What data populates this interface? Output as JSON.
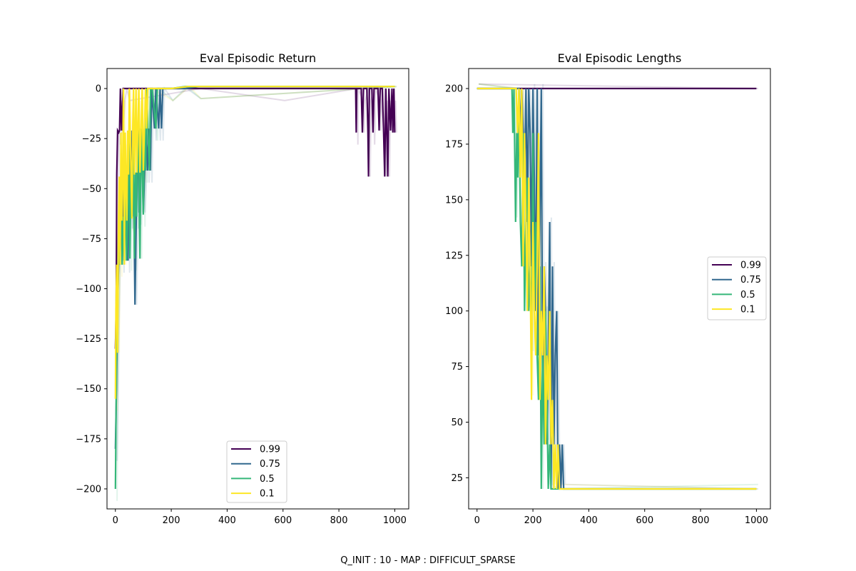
{
  "figure": {
    "caption": "Q_INIT : 10 - MAP : DIFFICULT_SPARSE"
  },
  "colors": {
    "0.99": "#440154",
    "0.75": "#31688e",
    "0.5": "#35b779",
    "0.1": "#fde725"
  },
  "chart_data": [
    {
      "type": "line",
      "title": "Eval Episodic Return",
      "xlabel": "",
      "ylabel": "",
      "xlim": [
        -30,
        1050
      ],
      "ylim": [
        -210,
        10
      ],
      "xticks": [
        0,
        200,
        400,
        600,
        800,
        1000
      ],
      "yticks": [
        0,
        -25,
        -50,
        -75,
        -100,
        -125,
        -150,
        -175,
        -200
      ],
      "legend": {
        "position": "lower-center",
        "entries": [
          "0.99",
          "0.75",
          "0.5",
          "0.1"
        ]
      },
      "grid": false,
      "series": [
        {
          "name": "0.99",
          "points": [
            [
              0,
              -130
            ],
            [
              3,
              -110
            ],
            [
              5,
              -43
            ],
            [
              8,
              -21
            ],
            [
              12,
              -22
            ],
            [
              15,
              -21
            ],
            [
              18,
              0
            ],
            [
              22,
              -21
            ],
            [
              28,
              0
            ],
            [
              35,
              0
            ],
            [
              45,
              0
            ],
            [
              300,
              0
            ],
            [
              600,
              0
            ],
            [
              860,
              0
            ],
            [
              862,
              -22
            ],
            [
              864,
              0
            ],
            [
              880,
              0
            ],
            [
              884,
              -22
            ],
            [
              888,
              0
            ],
            [
              900,
              0
            ],
            [
              904,
              -22
            ],
            [
              906,
              -44
            ],
            [
              909,
              0
            ],
            [
              918,
              0
            ],
            [
              922,
              -22
            ],
            [
              926,
              0
            ],
            [
              940,
              0
            ],
            [
              944,
              -21
            ],
            [
              948,
              0
            ],
            [
              955,
              0
            ],
            [
              960,
              -22
            ],
            [
              964,
              -44
            ],
            [
              968,
              0
            ],
            [
              975,
              -44
            ],
            [
              979,
              0
            ],
            [
              985,
              -21
            ],
            [
              990,
              0
            ],
            [
              993,
              -22
            ],
            [
              997,
              0
            ],
            [
              1000,
              -22
            ]
          ]
        },
        {
          "name": "0.75",
          "points": [
            [
              0,
              -180
            ],
            [
              4,
              -150
            ],
            [
              8,
              -108
            ],
            [
              12,
              -86
            ],
            [
              15,
              -65
            ],
            [
              20,
              -64
            ],
            [
              25,
              -86
            ],
            [
              30,
              -43
            ],
            [
              35,
              -64
            ],
            [
              40,
              -43
            ],
            [
              45,
              -86
            ],
            [
              50,
              -21
            ],
            [
              55,
              -64
            ],
            [
              60,
              -21
            ],
            [
              65,
              -43
            ],
            [
              70,
              -108
            ],
            [
              75,
              -63
            ],
            [
              80,
              -21
            ],
            [
              85,
              -62
            ],
            [
              90,
              -41
            ],
            [
              95,
              -20
            ],
            [
              100,
              -62
            ],
            [
              105,
              -41
            ],
            [
              110,
              -20
            ],
            [
              115,
              -41
            ],
            [
              120,
              -20
            ],
            [
              125,
              -41
            ],
            [
              130,
              0
            ],
            [
              140,
              -20
            ],
            [
              145,
              0
            ],
            [
              155,
              -20
            ],
            [
              160,
              0
            ],
            [
              165,
              -20
            ],
            [
              170,
              0
            ],
            [
              200,
              0
            ],
            [
              250,
              0
            ],
            [
              300,
              1
            ],
            [
              1000,
              1
            ]
          ]
        },
        {
          "name": "0.5",
          "points": [
            [
              0,
              -200
            ],
            [
              3,
              -155
            ],
            [
              6,
              -112
            ],
            [
              9,
              -90
            ],
            [
              12,
              -65
            ],
            [
              16,
              -88
            ],
            [
              20,
              -45
            ],
            [
              24,
              -88
            ],
            [
              28,
              -64
            ],
            [
              32,
              -86
            ],
            [
              36,
              -42
            ],
            [
              40,
              -86
            ],
            [
              44,
              -64
            ],
            [
              48,
              -21
            ],
            [
              52,
              -85
            ],
            [
              56,
              -42
            ],
            [
              60,
              -64
            ],
            [
              64,
              -20
            ],
            [
              68,
              -85
            ],
            [
              72,
              -42
            ],
            [
              76,
              -64
            ],
            [
              80,
              -20
            ],
            [
              84,
              -42
            ],
            [
              88,
              -85
            ],
            [
              92,
              -20
            ],
            [
              96,
              -41
            ],
            [
              100,
              -63
            ],
            [
              104,
              -20
            ],
            [
              108,
              -41
            ],
            [
              112,
              0
            ],
            [
              116,
              -20
            ],
            [
              122,
              -41
            ],
            [
              126,
              0
            ],
            [
              132,
              0
            ],
            [
              145,
              -20
            ],
            [
              150,
              0
            ],
            [
              200,
              0
            ],
            [
              250,
              1
            ],
            [
              300,
              1
            ],
            [
              1000,
              1
            ]
          ]
        },
        {
          "name": "0.1",
          "points": [
            [
              0,
              -155
            ],
            [
              2,
              -110
            ],
            [
              5,
              -88
            ],
            [
              8,
              -132
            ],
            [
              11,
              -66
            ],
            [
              14,
              -44
            ],
            [
              17,
              -88
            ],
            [
              20,
              -22
            ],
            [
              23,
              -66
            ],
            [
              26,
              -44
            ],
            [
              29,
              0
            ],
            [
              32,
              -88
            ],
            [
              35,
              -22
            ],
            [
              38,
              -44
            ],
            [
              41,
              -66
            ],
            [
              44,
              -21
            ],
            [
              47,
              -43
            ],
            [
              50,
              0
            ],
            [
              53,
              -21
            ],
            [
              56,
              -43
            ],
            [
              59,
              -65
            ],
            [
              62,
              -21
            ],
            [
              65,
              0
            ],
            [
              68,
              -43
            ],
            [
              71,
              -21
            ],
            [
              74,
              0
            ],
            [
              77,
              -42
            ],
            [
              80,
              -21
            ],
            [
              84,
              0
            ],
            [
              88,
              -42
            ],
            [
              92,
              -20
            ],
            [
              96,
              0
            ],
            [
              100,
              -41
            ],
            [
              104,
              -20
            ],
            [
              108,
              0
            ],
            [
              112,
              -20
            ],
            [
              116,
              0
            ],
            [
              125,
              0
            ],
            [
              200,
              0
            ],
            [
              260,
              1
            ],
            [
              300,
              1
            ],
            [
              1000,
              1
            ]
          ]
        }
      ]
    },
    {
      "type": "line",
      "title": "Eval Episodic Lengths",
      "xlabel": "",
      "ylabel": "",
      "xlim": [
        -30,
        1050
      ],
      "ylim": [
        11,
        209
      ],
      "xticks": [
        0,
        200,
        400,
        600,
        800,
        1000
      ],
      "yticks": [
        25,
        50,
        75,
        100,
        125,
        150,
        175,
        200
      ],
      "legend": {
        "position": "center-right",
        "entries": [
          "0.99",
          "0.75",
          "0.5",
          "0.1"
        ]
      },
      "grid": false,
      "series": [
        {
          "name": "0.99",
          "points": [
            [
              0,
              200
            ],
            [
              1000,
              200
            ]
          ]
        },
        {
          "name": "0.75",
          "points": [
            [
              0,
              200
            ],
            [
              150,
              200
            ],
            [
              155,
              180
            ],
            [
              160,
              200
            ],
            [
              170,
              160
            ],
            [
              175,
              200
            ],
            [
              180,
              140
            ],
            [
              185,
              200
            ],
            [
              190,
              180
            ],
            [
              195,
              120
            ],
            [
              200,
              200
            ],
            [
              205,
              160
            ],
            [
              210,
              100
            ],
            [
              215,
              200
            ],
            [
              220,
              80
            ],
            [
              225,
              140
            ],
            [
              230,
              200
            ],
            [
              235,
              60
            ],
            [
              240,
              120
            ],
            [
              245,
              100
            ],
            [
              250,
              40
            ],
            [
              255,
              80
            ],
            [
              260,
              140
            ],
            [
              265,
              20
            ],
            [
              270,
              120
            ],
            [
              275,
              40
            ],
            [
              280,
              80
            ],
            [
              285,
              100
            ],
            [
              290,
              20
            ],
            [
              295,
              40
            ],
            [
              300,
              20
            ],
            [
              305,
              40
            ],
            [
              310,
              20
            ],
            [
              1000,
              20
            ]
          ]
        },
        {
          "name": "0.5",
          "points": [
            [
              0,
              200
            ],
            [
              125,
              200
            ],
            [
              128,
              180
            ],
            [
              132,
              200
            ],
            [
              138,
              140
            ],
            [
              142,
              180
            ],
            [
              146,
              160
            ],
            [
              150,
              200
            ],
            [
              155,
              140
            ],
            [
              160,
              120
            ],
            [
              165,
              180
            ],
            [
              170,
              100
            ],
            [
              175,
              140
            ],
            [
              180,
              160
            ],
            [
              185,
              100
            ],
            [
              190,
              120
            ],
            [
              195,
              80
            ],
            [
              200,
              180
            ],
            [
              205,
              100
            ],
            [
              210,
              140
            ],
            [
              215,
              80
            ],
            [
              220,
              60
            ],
            [
              225,
              120
            ],
            [
              230,
              20
            ],
            [
              235,
              80
            ],
            [
              240,
              40
            ],
            [
              245,
              100
            ],
            [
              250,
              60
            ],
            [
              255,
              20
            ],
            [
              260,
              40
            ],
            [
              265,
              20
            ],
            [
              280,
              20
            ],
            [
              1000,
              20
            ]
          ]
        },
        {
          "name": "0.1",
          "points": [
            [
              0,
              200
            ],
            [
              140,
              200
            ],
            [
              145,
              180
            ],
            [
              150,
              200
            ],
            [
              155,
              160
            ],
            [
              160,
              200
            ],
            [
              165,
              120
            ],
            [
              170,
              180
            ],
            [
              175,
              140
            ],
            [
              180,
              100
            ],
            [
              185,
              160
            ],
            [
              190,
              120
            ],
            [
              195,
              60
            ],
            [
              200,
              140
            ],
            [
              205,
              100
            ],
            [
              210,
              80
            ],
            [
              215,
              120
            ],
            [
              220,
              180
            ],
            [
              225,
              60
            ],
            [
              230,
              100
            ],
            [
              235,
              80
            ],
            [
              240,
              120
            ],
            [
              245,
              40
            ],
            [
              250,
              80
            ],
            [
              255,
              60
            ],
            [
              260,
              100
            ],
            [
              265,
              40
            ],
            [
              270,
              60
            ],
            [
              275,
              20
            ],
            [
              280,
              40
            ],
            [
              285,
              20
            ],
            [
              290,
              40
            ],
            [
              295,
              20
            ],
            [
              1000,
              20
            ]
          ]
        }
      ]
    }
  ]
}
